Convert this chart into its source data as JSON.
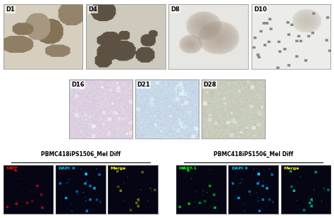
{
  "background_color": "#ffffff",
  "top_row_labels": [
    "D1",
    "D4",
    "D8",
    "D10"
  ],
  "mid_row_labels": [
    "D16",
    "D21",
    "D28"
  ],
  "bottom_left_title": "PBMC418iPS1506_Mel Diff",
  "bottom_right_title": "PBMC418iPS1506_Mel Diff",
  "bottom_left_sublabels": [
    "MITF",
    "DAPI",
    "Merge"
  ],
  "bottom_right_sublabels": [
    "MART-1",
    "DAPI",
    "Merge"
  ],
  "bottom_left_sublabel_colors": [
    "#ff0000",
    "#00ccff",
    "#ffff00"
  ],
  "bottom_right_sublabel_colors": [
    "#00ff00",
    "#00ccff",
    "#ffff00"
  ],
  "top_bg_colors": [
    "#d6cfc0",
    "#cdc9bc",
    "#e8e6e2",
    "#ececea"
  ],
  "top_fg_colors": [
    "#7a6648",
    "#4a3c2e",
    "#a09080",
    "#b0a898"
  ],
  "mid_bg_colors": [
    "#ddd0e0",
    "#c8d8e8",
    "#c8ccbc"
  ],
  "mid_fg_colors": [
    "#b8a8c0",
    "#a0b8cc",
    "#909888"
  ],
  "left_ch_colors": [
    "#cc0000",
    "#00aaff",
    "#888800"
  ],
  "right_ch_colors": [
    "#00cc00",
    "#00aaff",
    "#00cc88"
  ]
}
